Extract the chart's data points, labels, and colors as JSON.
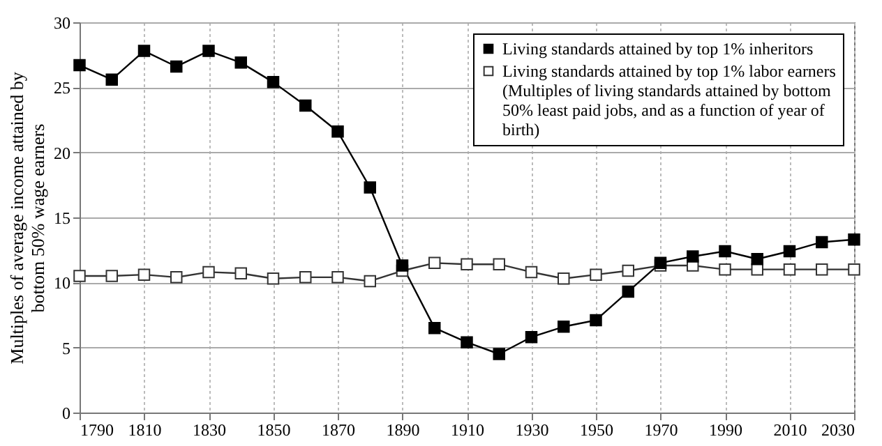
{
  "chart_data": {
    "type": "line",
    "ylabel": "Multiples of average income attained by bottom 50% wage earners",
    "x": [
      1790,
      1800,
      1810,
      1820,
      1830,
      1840,
      1850,
      1860,
      1870,
      1880,
      1890,
      1900,
      1910,
      1920,
      1930,
      1940,
      1950,
      1960,
      1970,
      1980,
      1990,
      2000,
      2010,
      2020,
      2030
    ],
    "series": [
      {
        "name": "Living standards attained by top 1% inheritors",
        "color": "#000000",
        "values": [
          26.7,
          25.6,
          27.8,
          26.6,
          27.8,
          26.9,
          25.4,
          23.6,
          21.6,
          17.3,
          11.3,
          6.5,
          5.4,
          4.5,
          5.8,
          6.6,
          7.1,
          9.3,
          11.5,
          12.0,
          12.4,
          11.8,
          12.4,
          13.1,
          13.3
        ]
      },
      {
        "name": "Living standards attained by top 1% labor earners (Multiples of living standards attained by bottom 50% least paid jobs, and as a function of year of birth)",
        "color": "#333333",
        "values": [
          10.5,
          10.5,
          10.6,
          10.4,
          10.8,
          10.7,
          10.3,
          10.4,
          10.4,
          10.1,
          10.9,
          11.5,
          11.4,
          11.4,
          10.8,
          10.3,
          10.6,
          10.9,
          11.3,
          11.3,
          11.0,
          11.0,
          11.0,
          11.0,
          11.0
        ]
      }
    ],
    "xlim": [
      1790,
      2030
    ],
    "xticks": [
      1790,
      1810,
      1830,
      1850,
      1870,
      1890,
      1910,
      1930,
      1950,
      1970,
      1990,
      2010,
      2030
    ],
    "ylim": [
      0,
      30
    ],
    "yticks": [
      0,
      5,
      10,
      15,
      20,
      25,
      30
    ],
    "grid": true,
    "legend": "top right",
    "marker": "square",
    "line_style": "solid"
  }
}
